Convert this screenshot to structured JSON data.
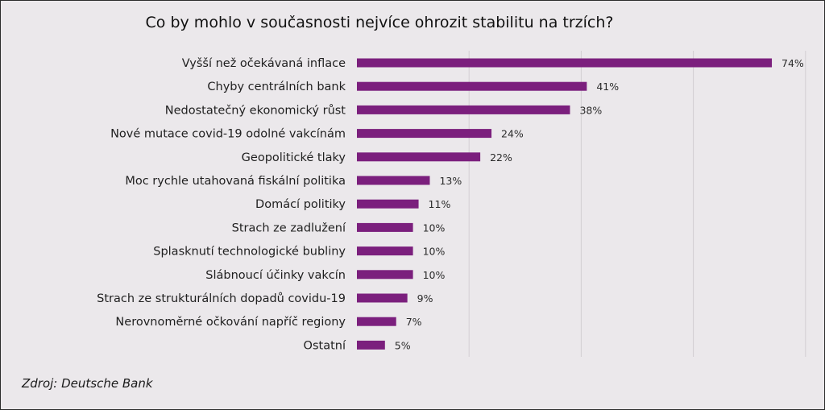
{
  "chart_data": {
    "type": "bar",
    "orientation": "horizontal",
    "title": "Co by mohlo v současnosti nejvíce ohrozit stabilitu na trzích?",
    "source": "Zdroj: Deutsche Bank",
    "categories": [
      "Vyšší než očekávaná inflace",
      "Chyby centrálních bank",
      "Nedostatečný ekonomický růst",
      "Nové mutace covid-19 odolné vakcínám",
      "Geopolitické tlaky",
      "Moc rychle utahovaná fiskální politika",
      "Domácí politiky",
      "Strach ze zadlužení",
      "Splasknutí technologické bubliny",
      "Slábnoucí účinky vakcín",
      "Strach ze strukturálních dopadů covidu-19",
      "Nerovnoměrné očkování napříč regiony",
      "Ostatní"
    ],
    "values": [
      74,
      41,
      38,
      24,
      22,
      13,
      11,
      10,
      10,
      10,
      9,
      7,
      5
    ],
    "value_labels": [
      "74%",
      "41%",
      "38%",
      "24%",
      "22%",
      "13%",
      "11%",
      "10%",
      "10%",
      "10%",
      "9%",
      "7%",
      "5%"
    ],
    "xlim": [
      0,
      80
    ],
    "grid": "vertical",
    "bar_color": "#7b1f7d",
    "background_color": "#ebe8eb",
    "legend": "none"
  }
}
